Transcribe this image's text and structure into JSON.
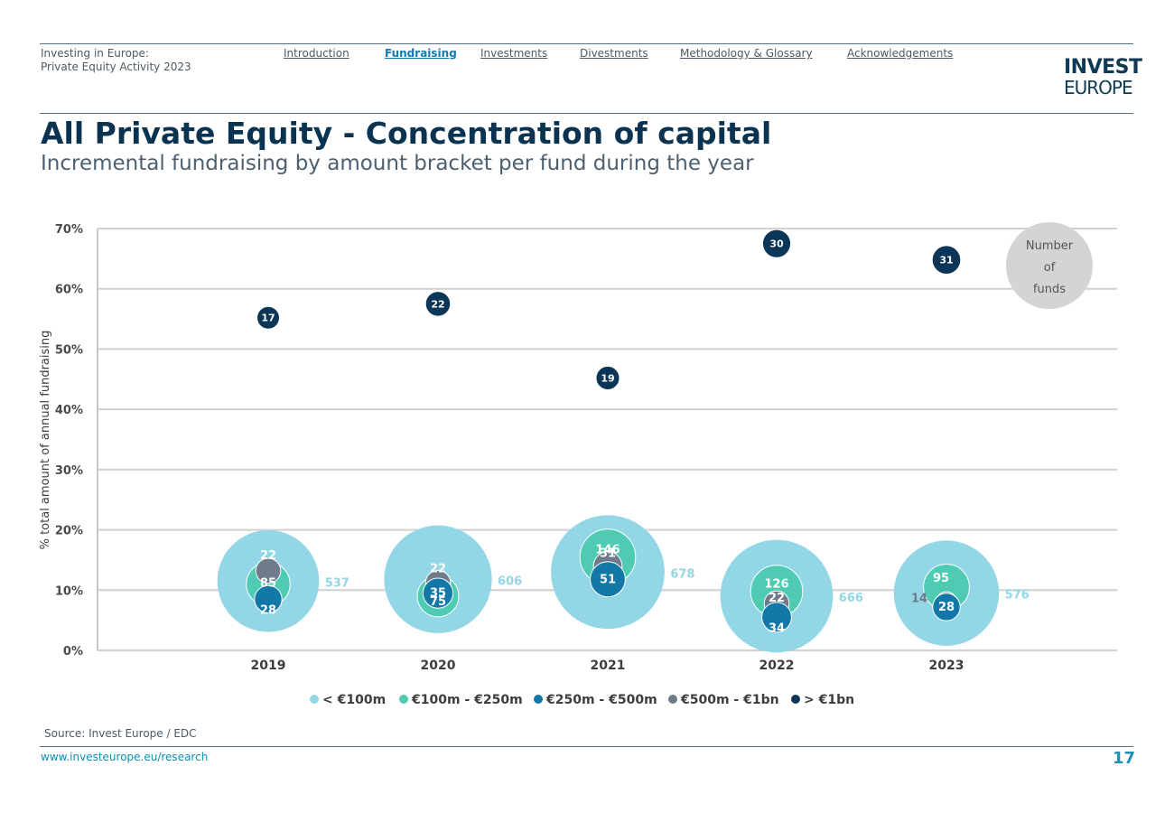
{
  "header": {
    "doc_title_line1": "Investing in Europe:",
    "doc_title_line2": "Private Equity Activity 2023",
    "nav": [
      "Introduction",
      "Fundraising",
      "Investments",
      "Divestments",
      "Methodology & Glossary",
      "Acknowledgements"
    ],
    "active_nav": "Fundraising",
    "logo_line1": "INVEST",
    "logo_line2": "EUROPE"
  },
  "page": {
    "title": "All Private Equity - Concentration of capital",
    "subtitle": "Incremental fundraising by amount bracket per fund during the year"
  },
  "chart_data": {
    "type": "bubble",
    "ylabel": "% total amount of annual fundraising",
    "ylim": [
      0,
      70
    ],
    "yticks": [
      "0%",
      "10%",
      "20%",
      "30%",
      "40%",
      "50%",
      "60%",
      "70%"
    ],
    "categories": [
      "2019",
      "2020",
      "2021",
      "2022",
      "2023"
    ],
    "grid": true,
    "bubble_legend": {
      "label_lines": [
        "Number",
        "of",
        "funds"
      ]
    },
    "series": [
      {
        "name": "< €100m",
        "color": "#93d6e6",
        "label_color": "#93d6e6",
        "points": [
          {
            "x": "2019",
            "y": 11.5,
            "funds": 537
          },
          {
            "x": "2020",
            "y": 11.8,
            "funds": 606
          },
          {
            "x": "2021",
            "y": 13.0,
            "funds": 678
          },
          {
            "x": "2022",
            "y": 9.0,
            "funds": 666
          },
          {
            "x": "2023",
            "y": 9.5,
            "funds": 576
          }
        ]
      },
      {
        "name": "€100m - €250m",
        "color": "#4ecbb2",
        "label_color": "#ffffff",
        "points": [
          {
            "x": "2019",
            "y": 11.0,
            "funds": 85
          },
          {
            "x": "2020",
            "y": 9.0,
            "funds": 75
          },
          {
            "x": "2021",
            "y": 15.5,
            "funds": 146
          },
          {
            "x": "2022",
            "y": 9.8,
            "funds": 126
          },
          {
            "x": "2023",
            "y": 10.5,
            "funds": 95
          }
        ]
      },
      {
        "name": "€250m - €500m",
        "color": "#1378a8",
        "label_color": "#ffffff",
        "points": [
          {
            "x": "2019",
            "y": 8.5,
            "funds": 28
          },
          {
            "x": "2020",
            "y": 9.5,
            "funds": 35
          },
          {
            "x": "2021",
            "y": 11.8,
            "funds": 51
          },
          {
            "x": "2022",
            "y": 5.5,
            "funds": 34
          },
          {
            "x": "2023",
            "y": 7.2,
            "funds": 28
          }
        ]
      },
      {
        "name": "€500m - €1bn",
        "color": "#6f7b8a",
        "label_color": "#ffffff",
        "points": [
          {
            "x": "2019",
            "y": 13.2,
            "funds": 22
          },
          {
            "x": "2020",
            "y": 11.2,
            "funds": 22
          },
          {
            "x": "2021",
            "y": 14.0,
            "funds": 31
          },
          {
            "x": "2022",
            "y": 7.8,
            "funds": 22
          },
          {
            "x": "2023",
            "y": 8.0,
            "funds": 14
          }
        ]
      },
      {
        "name": "> €1bn",
        "color": "#0c3658",
        "label_color": "#ffffff",
        "points": [
          {
            "x": "2019",
            "y": 55.2,
            "funds": 17
          },
          {
            "x": "2020",
            "y": 57.5,
            "funds": 22
          },
          {
            "x": "2021",
            "y": 45.2,
            "funds": 19
          },
          {
            "x": "2022",
            "y": 67.5,
            "funds": 30
          },
          {
            "x": "2023",
            "y": 64.8,
            "funds": 31
          }
        ]
      }
    ]
  },
  "footer": {
    "source": "Source: Invest Europe / EDC",
    "url": "www.investeurope.eu/research",
    "page_number": "17"
  }
}
